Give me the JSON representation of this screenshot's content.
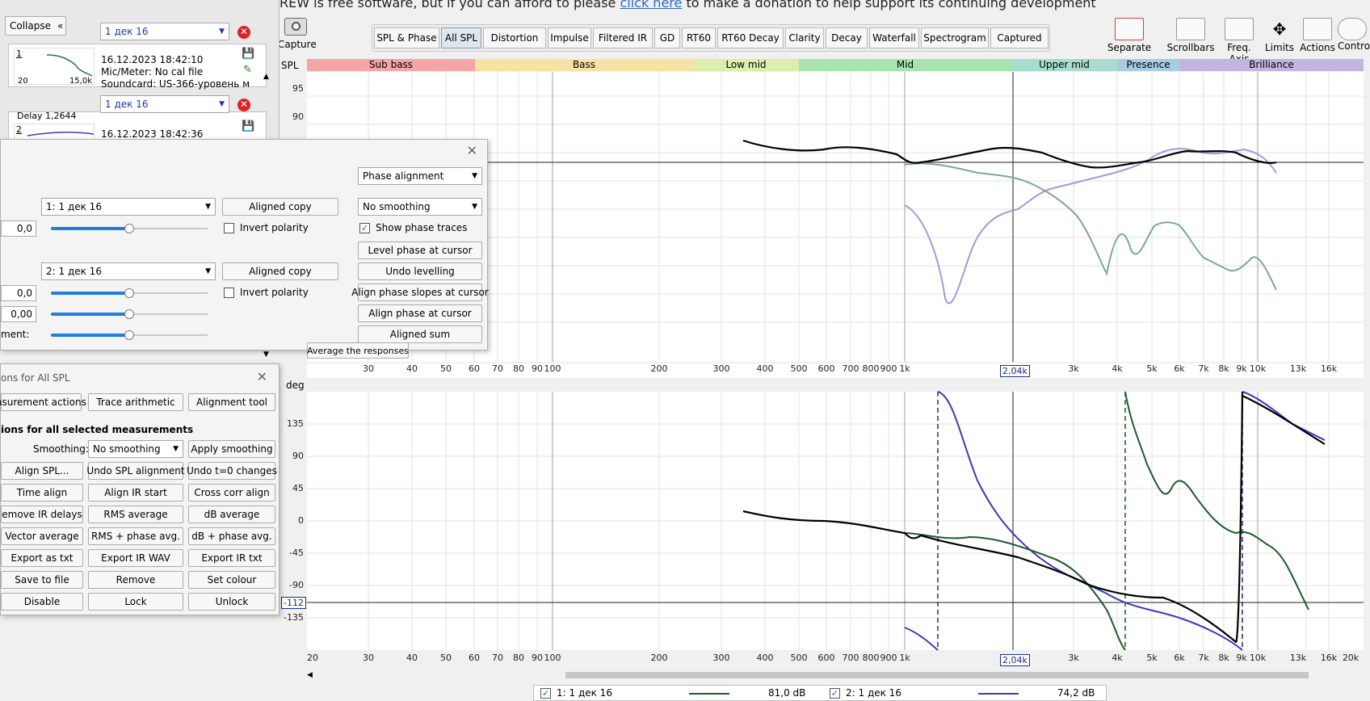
{
  "banner": {
    "pre": "REW is free software, but if you can afford to please ",
    "link": "click here",
    "post": " to make a donation to help support its continuing development"
  },
  "left_panel": {
    "collapse_label": "Collapse",
    "measurements": [
      {
        "index": "1",
        "name": "1 дек 16",
        "date": "16.12.2023 18:42:10",
        "mic": "Mic/Meter: No cal file",
        "soundcard": "Soundcard: US-366-уровень м",
        "axis_left": "20",
        "axis_right": "15,0k"
      },
      {
        "index": "2",
        "name": "1 дек 16",
        "date": "16.12.2023 18:42:36",
        "delay": "Delay 1,2644"
      }
    ]
  },
  "toolbar": {
    "capture": "Capture",
    "tabs": [
      "SPL & Phase",
      "All SPL",
      "Distortion",
      "Impulse",
      "Filtered IR",
      "GD",
      "RT60",
      "RT60 Decay",
      "Clarity",
      "Decay",
      "Waterfall",
      "Spectrogram",
      "Captured"
    ],
    "active_tab": "All SPL",
    "right_icons": [
      "Separate",
      "Scrollbars",
      "Freq. Axis",
      "Limits",
      "Actions",
      "Contro"
    ]
  },
  "bands": [
    {
      "label": "Sub bass",
      "color": "#f4a6a6"
    },
    {
      "label": "Bass",
      "color": "#f6e2a4"
    },
    {
      "label": "Low mid",
      "color": "#dcedac"
    },
    {
      "label": "Mid",
      "color": "#a9e3b0"
    },
    {
      "label": "Upper mid",
      "color": "#a8dccf"
    },
    {
      "label": "Presence",
      "color": "#a7cde2"
    },
    {
      "label": "Brilliance",
      "color": "#c3b5e1"
    }
  ],
  "upper_graph": {
    "y_title": "SPL",
    "y_ticks": [
      "95",
      "90"
    ],
    "x_ticks": [
      "30",
      "40",
      "50",
      "60",
      "70",
      "80",
      "90",
      "100",
      "200",
      "300",
      "400",
      "500",
      "600",
      "700",
      "800",
      "900",
      "1k",
      "3k",
      "4k",
      "5k",
      "6k",
      "7k",
      "8k",
      "9k",
      "10k",
      "13k",
      "16k"
    ],
    "cursor_label": "2,04k"
  },
  "lower_graph": {
    "y_title": "deg",
    "y_ticks": [
      "135",
      "90",
      "45",
      "0",
      "-45",
      "-90",
      "-135"
    ],
    "cursor_y": "-112",
    "x_ticks": [
      "20",
      "30",
      "40",
      "50",
      "60",
      "70",
      "80",
      "90",
      "100",
      "200",
      "300",
      "400",
      "500",
      "600",
      "700",
      "800",
      "900",
      "1k",
      "3k",
      "4k",
      "5k",
      "6k",
      "7k",
      "8k",
      "9k",
      "10k",
      "13k",
      "16k",
      "20k"
    ],
    "cursor_label": "2,04k"
  },
  "alignment_tool": {
    "phase_alignment": "Phase alignment",
    "m1_select": "1: 1 дек 16",
    "m2_select": "2: 1 дек 16",
    "aligned_copy": "Aligned copy",
    "smoothing_select": "No smoothing",
    "invert_polarity": "Invert polarity",
    "show_phase_traces": "Show phase traces",
    "level_phase": "Level phase at cursor",
    "undo_levelling": "Undo levelling",
    "align_slopes": "Align phase slopes at cursor",
    "align_phase": "Align phase at cursor",
    "aligned_sum": "Aligned sum",
    "field_1": "0,0",
    "field_2": "0,0",
    "field_3": "0,00",
    "alignment_label": "ment:",
    "average_button": "Average the responses",
    "slider_levels": [
      0.5,
      0.5,
      0.5,
      0.5
    ]
  },
  "actions_panel": {
    "title": "ons for All SPL",
    "tabs": [
      "asurement actions",
      "Trace arithmetic",
      "Alignment tool"
    ],
    "section": "ions for all selected measurements",
    "smoothing_label": "Smoothing:",
    "smoothing_value": "No smoothing",
    "apply_smoothing": "Apply smoothing",
    "buttons": [
      [
        "Align SPL...",
        "Undo SPL alignment",
        "Undo t=0 changes"
      ],
      [
        "Time align",
        "Align IR start",
        "Cross corr align"
      ],
      [
        "emove IR delays",
        "RMS average",
        "dB average"
      ],
      [
        "Vector average",
        "RMS + phase avg.",
        "dB + phase avg."
      ],
      [
        "Export as txt",
        "Export IR WAV",
        "Export IR txt"
      ],
      [
        "Save to file",
        "Remove",
        "Set colour"
      ],
      [
        "Disable",
        "Lock",
        "Unlock"
      ]
    ]
  },
  "legend": {
    "items": [
      {
        "label": "1: 1 дек 16",
        "value": "81,0 dB",
        "color": "#1d5b2c"
      },
      {
        "label": "2: 1 дек 16",
        "value": "74,2 dB",
        "color": "#3c3ab8"
      }
    ]
  }
}
